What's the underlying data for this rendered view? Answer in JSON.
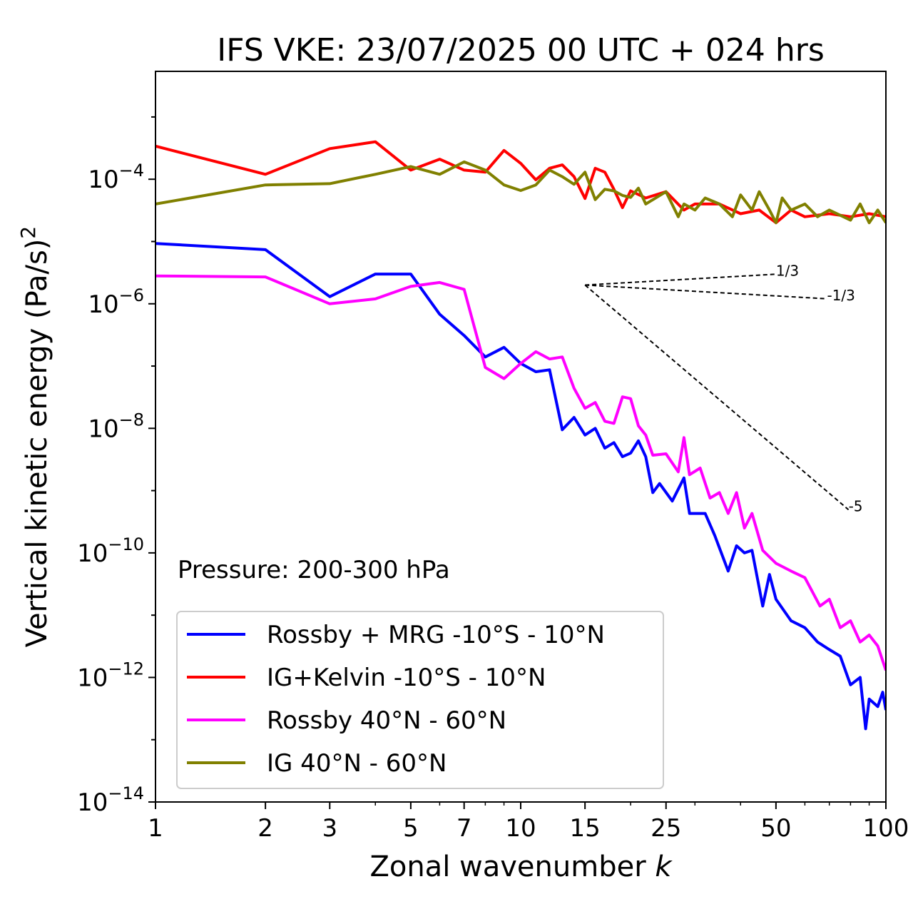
{
  "chart_data": {
    "type": "line",
    "title": "IFS VKE: 23/07/2025 00 UTC + 024 hrs",
    "xlabel": "Zonal wavenumber",
    "xlabel_var": "k",
    "ylabel": "Vertical kinetic energy (Pa/s)",
    "ylabel_power": "2",
    "xscale": "log",
    "yscale": "log",
    "xlim": [
      1,
      100
    ],
    "ylim": [
      1e-14,
      0.0054
    ],
    "grid": false,
    "x_ticks": [
      1,
      2,
      3,
      5,
      7,
      10,
      15,
      25,
      50,
      100
    ],
    "x_tick_labels": [
      "1",
      "2",
      "3",
      "5",
      "7",
      "10",
      "15",
      "25",
      "50",
      "100"
    ],
    "y_ticks": [
      -4,
      -6,
      -8,
      -10,
      -12,
      -14
    ],
    "y_tick_labels": [
      {
        "base": "10",
        "exp": "−4"
      },
      {
        "base": "10",
        "exp": "−6"
      },
      {
        "base": "10",
        "exp": "−8"
      },
      {
        "base": "10",
        "exp": "−10"
      },
      {
        "base": "10",
        "exp": "−12"
      },
      {
        "base": "10",
        "exp": "−14"
      }
    ],
    "annotation": "Pressure: 200-300 hPa",
    "legend_position": "lower-left",
    "series": [
      {
        "name": "Rossby + MRG -10°S - 10°N",
        "color": "#0000ff",
        "k": [
          1,
          2,
          3,
          4,
          5,
          6,
          7,
          8,
          9,
          10,
          11,
          12,
          13,
          14,
          15,
          16,
          17,
          18,
          19,
          20,
          21,
          22,
          23,
          24,
          26,
          28,
          29,
          32,
          34,
          37,
          39,
          41,
          43,
          46,
          48,
          50,
          55,
          60,
          65,
          70,
          75,
          80,
          85,
          88,
          90,
          95,
          98,
          100
        ],
        "values": [
          9.3e-06,
          7.4e-06,
          1.3e-06,
          3e-06,
          3e-06,
          6.8e-07,
          3.1e-07,
          1.4e-07,
          2e-07,
          1.1e-07,
          8.1e-08,
          8.7e-08,
          9.5e-09,
          1.5e-08,
          7.8e-09,
          1e-08,
          4.8e-09,
          5.9e-09,
          3.5e-09,
          4e-09,
          6.3e-09,
          3.5e-09,
          9.3e-10,
          1.3e-09,
          6.8e-10,
          1.6e-09,
          4.3e-10,
          4.3e-10,
          1.9e-10,
          5.1e-11,
          1.3e-10,
          1e-10,
          1.1e-10,
          1.4e-11,
          4.5e-11,
          1.8e-11,
          8.1e-12,
          6.3e-12,
          3.7e-12,
          2.8e-12,
          2.2e-12,
          7.6e-13,
          1e-12,
          1.5e-13,
          4.5e-13,
          3.4e-13,
          5.8e-13,
          3e-13
        ]
      },
      {
        "name": "IG+Kelvin -10°S - 10°N",
        "color": "#ff0000",
        "k": [
          1,
          2,
          3,
          4,
          5,
          6,
          7,
          8,
          9,
          10,
          11,
          12,
          13,
          14,
          15,
          16,
          17,
          18,
          19,
          20,
          22,
          25,
          28,
          30,
          35,
          40,
          45,
          50,
          55,
          60,
          70,
          80,
          90,
          100
        ],
        "values": [
          0.00034,
          0.00012,
          0.00031,
          0.0004,
          0.00014,
          0.00021,
          0.00014,
          0.00013,
          0.00029,
          0.00018,
          9.8e-05,
          0.00015,
          0.00017,
          0.00011,
          4.9e-05,
          0.00015,
          0.00013,
          6.9e-05,
          3.5e-05,
          6.5e-05,
          5e-05,
          6.3e-05,
          3.2e-05,
          4e-05,
          4e-05,
          2.8e-05,
          3.2e-05,
          2e-05,
          3.2e-05,
          2.5e-05,
          2.8e-05,
          2.5e-05,
          2.8e-05,
          2.5e-05
        ]
      },
      {
        "name": "Rossby 40°N - 60°N",
        "color": "#ff00ff",
        "k": [
          1,
          2,
          3,
          4,
          5,
          6,
          7,
          8,
          9,
          10,
          11,
          12,
          13,
          14,
          15,
          16,
          17,
          18,
          19,
          20,
          21,
          22,
          23,
          25,
          27,
          28,
          29,
          31,
          33,
          35,
          37,
          39,
          41,
          43,
          46,
          50,
          55,
          60,
          66,
          70,
          75,
          80,
          85,
          90,
          95,
          100
        ],
        "values": [
          2.8e-06,
          2.7e-06,
          1e-06,
          1.2e-06,
          1.9e-06,
          2.2e-06,
          1.7e-06,
          9.5e-08,
          6.3e-08,
          1.1e-07,
          1.7e-07,
          1.3e-07,
          1.4e-07,
          4.4e-08,
          2.1e-08,
          2.6e-08,
          1.3e-08,
          1.2e-08,
          3.2e-08,
          3e-08,
          1.1e-08,
          7.8e-09,
          3.7e-09,
          3.9e-09,
          2e-09,
          7.1e-09,
          1.8e-09,
          2.3e-09,
          7.6e-10,
          9.3e-10,
          4.3e-10,
          9.3e-10,
          2.5e-10,
          4.3e-10,
          1.1e-10,
          6.8e-11,
          5.1e-11,
          4e-11,
          1.4e-11,
          1.8e-11,
          6.3e-12,
          8.1e-12,
          3.7e-12,
          4.8e-12,
          3.2e-12,
          1.3e-12
        ]
      },
      {
        "name": "IG 40°N - 60°N",
        "color": "#808000",
        "k": [
          1,
          2,
          3,
          4,
          5,
          6,
          7,
          8,
          9,
          10,
          11,
          12,
          13,
          14,
          15,
          16,
          17,
          18,
          19,
          20,
          21,
          22,
          25,
          27,
          28,
          30,
          32,
          35,
          38,
          40,
          43,
          45,
          48,
          50,
          52,
          55,
          60,
          65,
          70,
          80,
          85,
          90,
          95,
          100
        ],
        "values": [
          4e-05,
          8.1e-05,
          8.5e-05,
          0.00012,
          0.00016,
          0.00012,
          0.00019,
          0.00014,
          8.1e-05,
          6.6e-05,
          8.1e-05,
          0.00014,
          0.00011,
          8.3e-05,
          0.00013,
          4.7e-05,
          6.9e-05,
          6.5e-05,
          5.5e-05,
          5.1e-05,
          7.2e-05,
          4e-05,
          6.3e-05,
          2.5e-05,
          4e-05,
          3.2e-05,
          5e-05,
          4e-05,
          2.5e-05,
          5.6e-05,
          3.2e-05,
          6.3e-05,
          3.2e-05,
          2e-05,
          5e-05,
          3.2e-05,
          4e-05,
          2.5e-05,
          3.2e-05,
          2.2e-05,
          4e-05,
          2e-05,
          3.2e-05,
          2e-05
        ]
      }
    ],
    "reference_slopes": [
      {
        "label": "1/3",
        "slope": 0.3333,
        "k_start": 15,
        "k_end": 50,
        "y_start": 2e-06
      },
      {
        "label": "-1/3",
        "slope": -0.3333,
        "k_start": 15,
        "k_end": 69,
        "y_start": 2e-06
      },
      {
        "label": "-5",
        "slope": -5,
        "k_start": 15,
        "k_end": 79,
        "y_start": 2e-06
      }
    ]
  }
}
